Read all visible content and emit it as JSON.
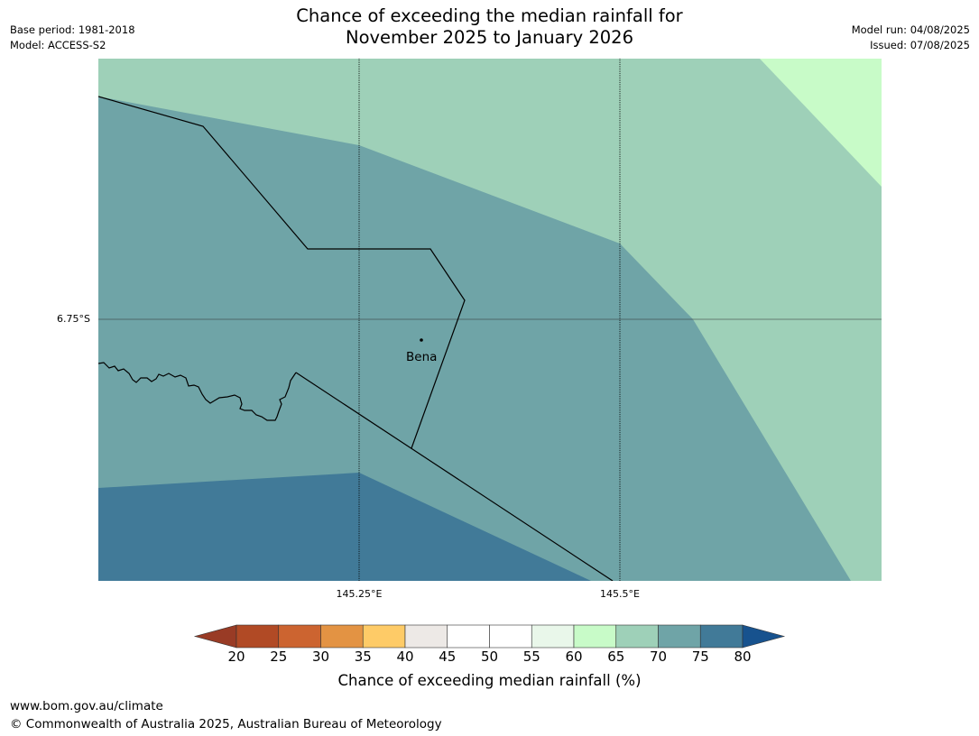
{
  "header": {
    "title_line1": "Chance of exceeding the median rainfall for",
    "title_line2": "November 2025 to January 2026",
    "base_period": "Base period: 1981-2018",
    "model": "Model: ACCESS-S2",
    "model_run": "Model run: 04/08/2025",
    "issued": "Issued: 07/08/2025"
  },
  "map": {
    "latitude_labels": [
      "6.75°S"
    ],
    "longitude_labels": [
      "145.25°E",
      "145.5°E"
    ],
    "place_label": "Bena",
    "zone_colors": {
      "p65_70": "#9ed0b8",
      "p70_75": "#6fa4a7",
      "p75_80": "#417a98",
      "p60_65": "#c8fbc8"
    }
  },
  "colorbar": {
    "label": "Chance of exceeding median rainfall (%)",
    "ticks": [
      "20",
      "25",
      "30",
      "35",
      "40",
      "45",
      "50",
      "55",
      "60",
      "65",
      "70",
      "75",
      "80"
    ],
    "colors": [
      "#b14a25",
      "#cc6430",
      "#e39343",
      "#fecb67",
      "#ede9e6",
      "#ffffff",
      "#ffffff",
      "#e9f7ea",
      "#c8fbc8",
      "#9ed0b8",
      "#6fa4a7",
      "#417a98"
    ],
    "under_color": "#993b25",
    "over_color": "#17528e"
  },
  "footer": {
    "url": "www.bom.gov.au/climate",
    "copyright": "© Commonwealth of Australia 2025, Australian Bureau of Meteorology"
  }
}
